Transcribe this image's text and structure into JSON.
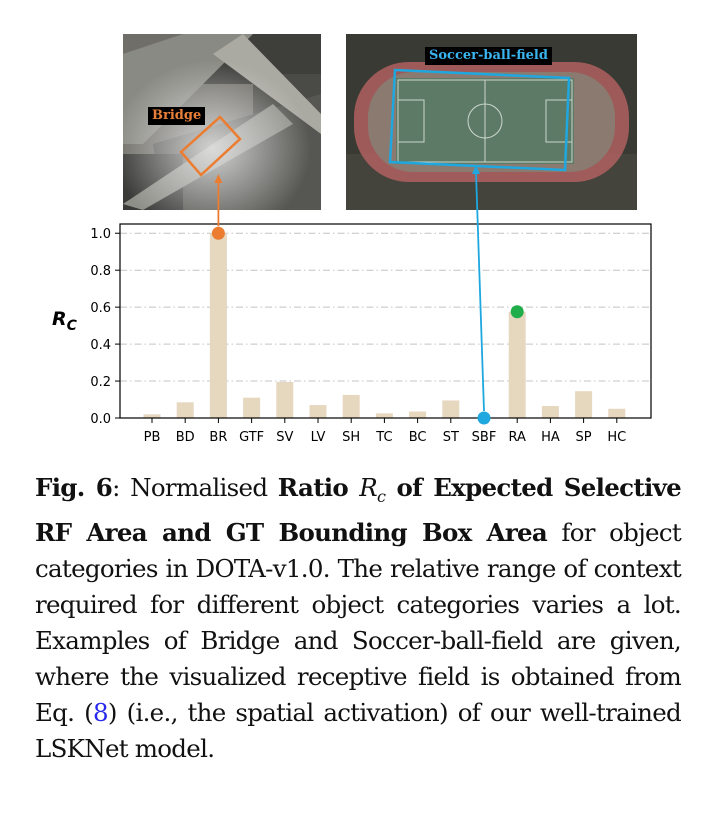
{
  "panels": {
    "bridge_label": "Bridge",
    "sbf_label": "Soccer-ball-field"
  },
  "colors": {
    "bar": "#e6d7bf",
    "bridge_marker": "#ec7c30",
    "sbf_marker": "#1fa7e0",
    "ra_marker": "#1fae4a"
  },
  "chart_data": {
    "type": "bar",
    "categories": [
      "PB",
      "BD",
      "BR",
      "GTF",
      "SV",
      "LV",
      "SH",
      "TC",
      "BC",
      "ST",
      "SBF",
      "RA",
      "HA",
      "SP",
      "HC"
    ],
    "values": [
      0.02,
      0.085,
      1.0,
      0.11,
      0.195,
      0.07,
      0.125,
      0.025,
      0.035,
      0.095,
      0.0,
      0.575,
      0.065,
      0.145,
      0.05
    ],
    "ylabel": "R_C",
    "ylim": [
      0,
      1.05
    ],
    "yticks": [
      "0.0",
      "0.2",
      "0.4",
      "0.6",
      "0.8",
      "1.0"
    ],
    "grid": "horizontal dash-dot",
    "highlighted": [
      {
        "category": "BR",
        "value": 1.0,
        "color": "#ec7c30"
      },
      {
        "category": "SBF",
        "value": 0.0,
        "color": "#1fa7e0"
      },
      {
        "category": "RA",
        "value": 0.575,
        "color": "#1fae4a"
      }
    ]
  },
  "caption": {
    "fig_label": "Fig. 6",
    "sep": ": Normalised ",
    "bold1": "Ratio ",
    "math_r": "R",
    "math_sub": "c",
    "bold2": " of Expected Selective RF Area and GT Bounding Box Area",
    "text1": " for object categories in DOTA-v1.0. The relative range of context required for different object categories varies a lot. Examples of Bridge and Soccer-ball-field are given, where the visualized receptive field is obtained from Eq. (",
    "eq_ref": "8",
    "text2": ") (i.e., the spatial activation) of our well-trained LSKNet model."
  }
}
